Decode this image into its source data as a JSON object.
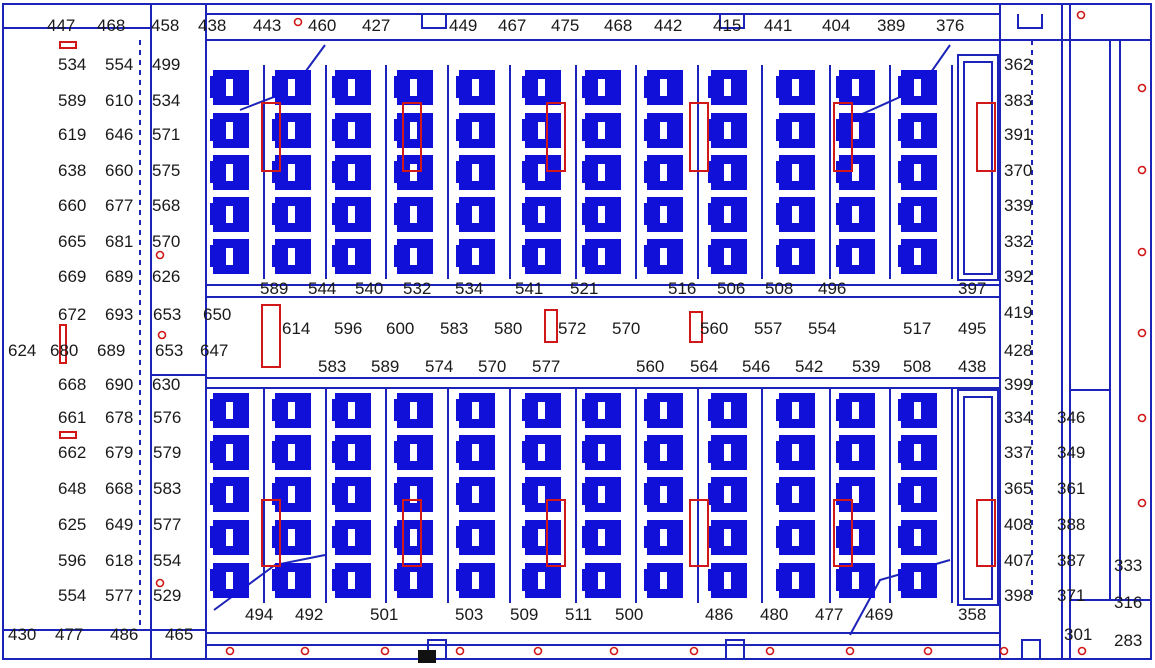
{
  "colors": {
    "frame": "#1c23b8",
    "block": "#1010d8",
    "marker": "#d01818",
    "text": "#1a1a1a",
    "slot": "#ffffff"
  },
  "top_labels": [
    "447",
    "468",
    "458",
    "438",
    "443",
    "460",
    "427",
    "449",
    "467",
    "475",
    "468",
    "442",
    "415",
    "441",
    "404",
    "389",
    "376"
  ],
  "left_upper": [
    [
      "534",
      "554",
      "499"
    ],
    [
      "589",
      "610",
      "534"
    ],
    [
      "619",
      "646",
      "571"
    ],
    [
      "638",
      "660",
      "575"
    ],
    [
      "660",
      "677",
      "568"
    ],
    [
      "665",
      "681",
      "570"
    ],
    [
      "669",
      "689",
      "626"
    ]
  ],
  "left_middle": [
    [
      "672",
      "693",
      "653",
      "650"
    ],
    [
      "624",
      "680",
      "689",
      "653",
      "647"
    ],
    [
      "668",
      "690",
      "630"
    ]
  ],
  "left_lower": [
    [
      "661",
      "678",
      "576"
    ],
    [
      "662",
      "679",
      "579"
    ],
    [
      "648",
      "668",
      "583"
    ],
    [
      "625",
      "649",
      "577"
    ],
    [
      "596",
      "618",
      "554"
    ],
    [
      "554",
      "577",
      "529"
    ],
    [
      "430",
      "477",
      "486",
      "465"
    ]
  ],
  "mid_row_1": [
    "589",
    "544",
    "540",
    "532",
    "534",
    "541",
    "521",
    "516",
    "506",
    "508",
    "496",
    "397"
  ],
  "mid_row_2": [
    "614",
    "596",
    "600",
    "583",
    "580",
    "572",
    "570",
    "560",
    "557",
    "554",
    "517",
    "495"
  ],
  "mid_row_3": [
    "583",
    "589",
    "574",
    "570",
    "577",
    "560",
    "564",
    "546",
    "542",
    "539",
    "508",
    "438"
  ],
  "bottom_labels": [
    "494",
    "492",
    "501",
    "503",
    "509",
    "511",
    "500",
    "486",
    "480",
    "477",
    "469",
    "358"
  ],
  "right_upper": [
    "362",
    "383",
    "391",
    "370",
    "339",
    "332",
    "392"
  ],
  "right_middle": [
    "419",
    "428",
    "399"
  ],
  "right_lower": [
    [
      "334",
      "346"
    ],
    [
      "337",
      "349"
    ],
    [
      "365",
      "361"
    ],
    [
      "408",
      "388"
    ],
    [
      "407",
      "387"
    ],
    [
      "398",
      "371"
    ]
  ],
  "far_right": [
    "333",
    "316",
    "301",
    "283"
  ]
}
